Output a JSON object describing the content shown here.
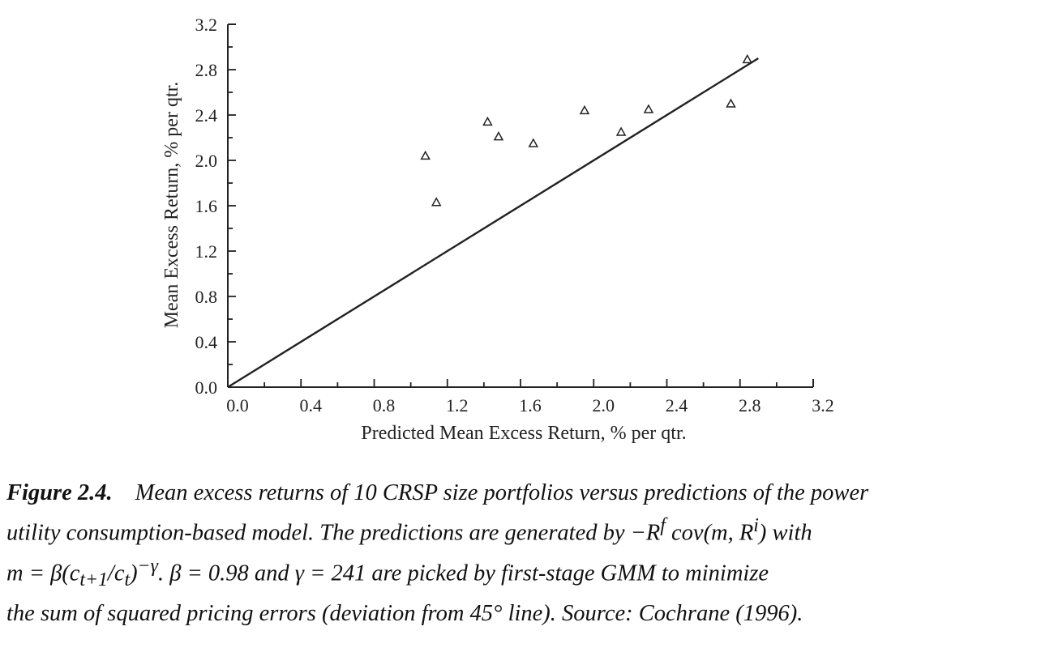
{
  "chart_data": {
    "type": "scatter",
    "xlabel": "Predicted Mean Excess Return, % per qtr.",
    "ylabel": "Mean Excess Return, % per qtr.",
    "xlim": [
      0.0,
      3.2
    ],
    "ylim": [
      0.0,
      3.2
    ],
    "x_ticks": [
      "0.0",
      "0.4",
      "0.8",
      "1.2",
      "1.6",
      "2.0",
      "2.4",
      "2.8",
      "3.2"
    ],
    "y_ticks": [
      "0.0",
      "0.4",
      "0.8",
      "1.2",
      "1.6",
      "2.0",
      "2.4",
      "2.8",
      "3.2"
    ],
    "marker": "open-triangle",
    "grid": false,
    "series": [
      {
        "points": [
          {
            "x": 1.08,
            "y": 2.04
          },
          {
            "x": 1.14,
            "y": 1.63
          },
          {
            "x": 1.42,
            "y": 2.34
          },
          {
            "x": 1.48,
            "y": 2.21
          },
          {
            "x": 1.67,
            "y": 2.15
          },
          {
            "x": 1.95,
            "y": 2.44
          },
          {
            "x": 2.15,
            "y": 2.25
          },
          {
            "x": 2.3,
            "y": 2.45
          },
          {
            "x": 2.75,
            "y": 2.5
          },
          {
            "x": 2.84,
            "y": 2.89
          }
        ]
      }
    ],
    "reference_line": {
      "from": [
        0.0,
        0.0
      ],
      "to": [
        2.9,
        2.9
      ]
    }
  },
  "caption": {
    "label": "Figure 2.4.",
    "line1": "Mean excess returns of 10 CRSP size portfolios versus predictions of the power",
    "line2": "utility consumption-based model. The predictions are generated by −R",
    "line2_sup_f": "f",
    "line2_cov": " cov(m, R",
    "line2_sup_i": "i",
    "line2_end": ") with",
    "line3": "m = β(c",
    "line3_sub1": "t+1",
    "line3_mid": "/c",
    "line3_sub2": "t",
    "line3_close": ")",
    "line3_sup": "−γ",
    "line3_rest": ". β = 0.98 and γ = 241 are picked by first-stage GMM to minimize",
    "line4": "the sum of squared pricing errors (deviation from 45° line). Source: Cochrane (1996)."
  }
}
